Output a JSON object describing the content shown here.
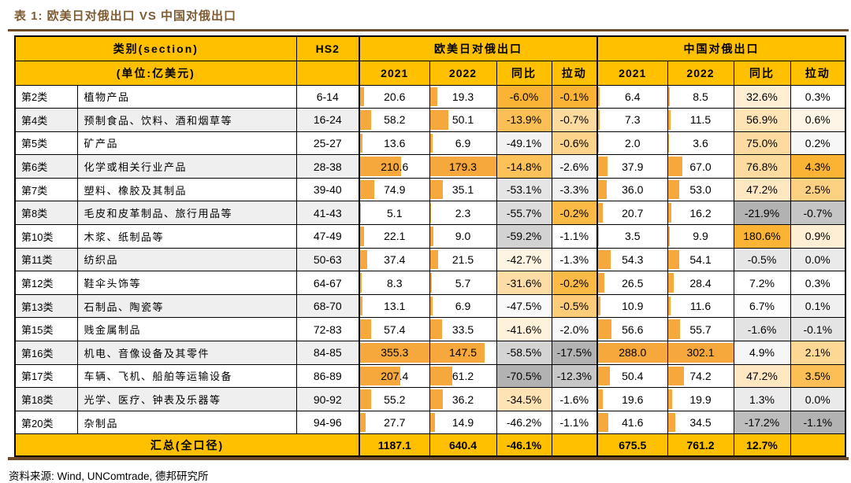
{
  "title": "表 1: 欧美日对俄出口 VS 中国对俄出口",
  "source": "资料来源: Wind, UNComtrade, 德邦研究所",
  "colors": {
    "header_gold": "#FFC000",
    "band_gray": "#EFEFEF",
    "bar_orange": "#F7A83C",
    "scale_max_orange": "#FBB335",
    "scale_mid_white": "#FFFFFF",
    "scale_min_gray": "#B2B2B2",
    "title_brown": "#7E5B33",
    "rule_brown": "#6E4B26",
    "border_black": "#000000"
  },
  "table": {
    "header": {
      "section_label": "类别(section)",
      "unit_label": "(单位:亿美元)",
      "hs2_label": "HS2",
      "group1_label": "欧美日对俄出口",
      "group2_label": "中国对俄出口",
      "subcols": [
        "2021",
        "2022",
        "同比",
        "拉动"
      ]
    },
    "rows": [
      {
        "cat": "第2类",
        "name": "植物产品",
        "hs2": "6-14",
        "g1": {
          "y2021": 20.6,
          "y2022": 19.3,
          "yoy": "-6.0%",
          "pull": "-0.1%"
        },
        "g2": {
          "y2021": 6.4,
          "y2022": 8.5,
          "yoy": "32.6%",
          "pull": "0.3%"
        }
      },
      {
        "cat": "第4类",
        "name": "预制食品、饮料、酒和烟草等",
        "hs2": "16-24",
        "g1": {
          "y2021": 58.2,
          "y2022": 50.1,
          "yoy": "-13.9%",
          "pull": "-0.7%"
        },
        "g2": {
          "y2021": 7.3,
          "y2022": 11.5,
          "yoy": "56.9%",
          "pull": "0.6%"
        }
      },
      {
        "cat": "第5类",
        "name": "矿产品",
        "hs2": "25-27",
        "g1": {
          "y2021": 13.6,
          "y2022": 6.9,
          "yoy": "-49.1%",
          "pull": "-0.6%"
        },
        "g2": {
          "y2021": 2.0,
          "y2022": 3.6,
          "yoy": "75.0%",
          "pull": "0.2%"
        }
      },
      {
        "cat": "第6类",
        "name": "化学或相关行业产品",
        "hs2": "28-38",
        "g1": {
          "y2021": 210.6,
          "y2022": 179.3,
          "yoy": "-14.8%",
          "pull": "-2.6%"
        },
        "g2": {
          "y2021": 37.9,
          "y2022": 67.0,
          "yoy": "76.8%",
          "pull": "4.3%"
        }
      },
      {
        "cat": "第7类",
        "name": "塑料、橡胶及其制品",
        "hs2": "39-40",
        "g1": {
          "y2021": 74.9,
          "y2022": 35.1,
          "yoy": "-53.1%",
          "pull": "-3.3%"
        },
        "g2": {
          "y2021": 36.0,
          "y2022": 53.0,
          "yoy": "47.2%",
          "pull": "2.5%"
        }
      },
      {
        "cat": "第8类",
        "name": "毛皮和皮革制品、旅行用品等",
        "hs2": "41-43",
        "g1": {
          "y2021": 5.1,
          "y2022": 2.3,
          "yoy": "-55.7%",
          "pull": "-0.2%"
        },
        "g2": {
          "y2021": 20.7,
          "y2022": 16.2,
          "yoy": "-21.9%",
          "pull": "-0.7%"
        }
      },
      {
        "cat": "第10类",
        "name": "木浆、纸制品等",
        "hs2": "47-49",
        "g1": {
          "y2021": 22.1,
          "y2022": 9.0,
          "yoy": "-59.2%",
          "pull": "-1.1%"
        },
        "g2": {
          "y2021": 3.5,
          "y2022": 9.9,
          "yoy": "180.6%",
          "pull": "0.9%"
        }
      },
      {
        "cat": "第11类",
        "name": "纺织品",
        "hs2": "50-63",
        "g1": {
          "y2021": 37.4,
          "y2022": 21.5,
          "yoy": "-42.7%",
          "pull": "-1.3%"
        },
        "g2": {
          "y2021": 54.3,
          "y2022": 54.1,
          "yoy": "-0.5%",
          "pull": "0.0%"
        }
      },
      {
        "cat": "第12类",
        "name": "鞋伞头饰等",
        "hs2": "64-67",
        "g1": {
          "y2021": 8.3,
          "y2022": 5.7,
          "yoy": "-31.6%",
          "pull": "-0.2%"
        },
        "g2": {
          "y2021": 26.5,
          "y2022": 28.4,
          "yoy": "7.2%",
          "pull": "0.3%"
        }
      },
      {
        "cat": "第13类",
        "name": "石制品、陶瓷等",
        "hs2": "68-70",
        "g1": {
          "y2021": 13.1,
          "y2022": 6.9,
          "yoy": "-47.5%",
          "pull": "-0.5%"
        },
        "g2": {
          "y2021": 10.9,
          "y2022": 11.6,
          "yoy": "6.7%",
          "pull": "0.1%"
        }
      },
      {
        "cat": "第15类",
        "name": "贱金属制品",
        "hs2": "72-83",
        "g1": {
          "y2021": 57.4,
          "y2022": 33.5,
          "yoy": "-41.6%",
          "pull": "-2.0%"
        },
        "g2": {
          "y2021": 56.6,
          "y2022": 55.7,
          "yoy": "-1.6%",
          "pull": "-0.1%"
        }
      },
      {
        "cat": "第16类",
        "name": "机电、音像设备及其零件",
        "hs2": "84-85",
        "g1": {
          "y2021": 355.3,
          "y2022": 147.5,
          "yoy": "-58.5%",
          "pull": "-17.5%"
        },
        "g2": {
          "y2021": 288.0,
          "y2022": 302.1,
          "yoy": "4.9%",
          "pull": "2.1%"
        }
      },
      {
        "cat": "第17类",
        "name": "车辆、飞机、船舶等运输设备",
        "hs2": "86-89",
        "g1": {
          "y2021": 207.4,
          "y2022": 61.2,
          "yoy": "-70.5%",
          "pull": "-12.3%"
        },
        "g2": {
          "y2021": 50.4,
          "y2022": 74.2,
          "yoy": "47.2%",
          "pull": "3.5%"
        }
      },
      {
        "cat": "第18类",
        "name": "光学、医疗、钟表及乐器等",
        "hs2": "90-92",
        "g1": {
          "y2021": 55.2,
          "y2022": 36.2,
          "yoy": "-34.5%",
          "pull": "-1.6%"
        },
        "g2": {
          "y2021": 19.6,
          "y2022": 19.9,
          "yoy": "1.3%",
          "pull": "0.0%"
        }
      },
      {
        "cat": "第20类",
        "name": "杂制品",
        "hs2": "94-96",
        "g1": {
          "y2021": 27.7,
          "y2022": 14.9,
          "yoy": "-46.2%",
          "pull": "-1.1%"
        },
        "g2": {
          "y2021": 41.6,
          "y2022": 34.5,
          "yoy": "-17.2%",
          "pull": "-1.1%"
        }
      }
    ],
    "summary": {
      "label": "汇总(全口径)",
      "g1": {
        "y2021": "1187.1",
        "y2022": "640.4",
        "yoy": "-46.1%",
        "pull": ""
      },
      "g2": {
        "y2021": "675.5",
        "y2022": "761.2",
        "yoy": "12.7%",
        "pull": ""
      }
    }
  }
}
